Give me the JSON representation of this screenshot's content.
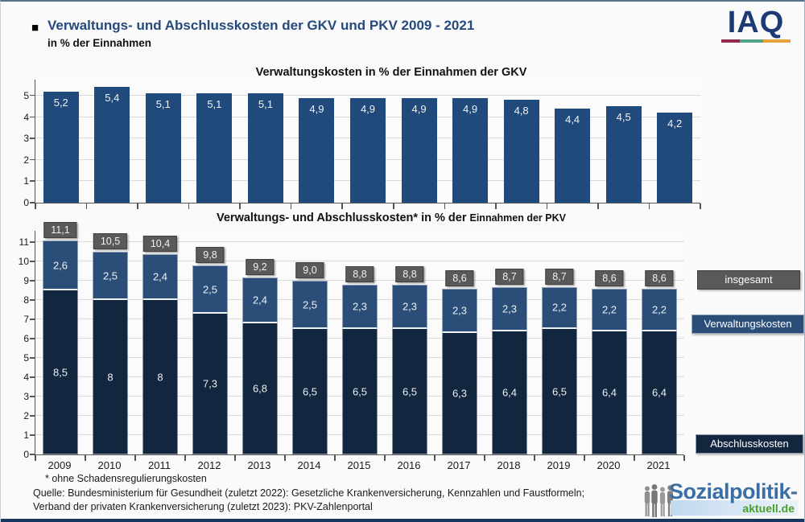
{
  "header": {
    "bullet": "■",
    "title": "Verwaltungs- und Abschlusskosten der GKV und PKV 2009 - 2021",
    "subtitle": "in % der Einnahmen"
  },
  "iaq_logo": {
    "text": "IAQ",
    "underline_colors": [
      "#8E2B49",
      "#4FA487",
      "#E8A23B"
    ]
  },
  "chart_data": [
    {
      "type": "bar",
      "title": "Verwaltungskosten in % der Einnahmen der GKV",
      "categories": [
        "2009",
        "2010",
        "2011",
        "2012",
        "2013",
        "2014",
        "2015",
        "2016",
        "2017",
        "2018",
        "2019",
        "2020",
        "2021"
      ],
      "values": [
        5.2,
        5.4,
        5.1,
        5.1,
        5.1,
        4.9,
        4.9,
        4.9,
        4.9,
        4.8,
        4.4,
        4.5,
        4.2
      ],
      "labels": [
        "5,2",
        "5,4",
        "5,1",
        "5,1",
        "5,1",
        "4,9",
        "4,9",
        "4,9",
        "4,9",
        "4,8",
        "4,4",
        "4,5",
        "4,2"
      ],
      "bar_color": "#20497C",
      "ylim": [
        0,
        5.75
      ],
      "yticks": [
        0,
        1,
        2,
        3,
        4,
        5
      ],
      "grid": true,
      "x_labels_visible": false
    },
    {
      "type": "stacked-bar",
      "title": "Verwaltungs- und Abschlusskosten* in % der Einnahmen der PKV",
      "title_parts": {
        "main": "Verwaltungs- und Abschlusskosten* in % der ",
        "small": "Einnahmen der PKV"
      },
      "categories": [
        "2009",
        "2010",
        "2011",
        "2012",
        "2013",
        "2014",
        "2015",
        "2016",
        "2017",
        "2018",
        "2019",
        "2020",
        "2021"
      ],
      "series": [
        {
          "name": "Abschlusskosten",
          "color": "#13263F",
          "values": [
            8.5,
            8,
            8,
            7.3,
            6.8,
            6.5,
            6.5,
            6.5,
            6.3,
            6.4,
            6.5,
            6.4,
            6.4
          ],
          "labels": [
            "8,5",
            "8",
            "8",
            "7,3",
            "6,8",
            "6,5",
            "6,5",
            "6,5",
            "6,3",
            "6,4",
            "6,5",
            "6,4",
            "6,4"
          ]
        },
        {
          "name": "Verwaltungskosten",
          "color": "#2B4E78",
          "values": [
            2.6,
            2.5,
            2.4,
            2.5,
            2.4,
            2.5,
            2.3,
            2.3,
            2.3,
            2.3,
            2.2,
            2.2,
            2.2
          ],
          "labels": [
            "2,6",
            "2,5",
            "2,4",
            "2,5",
            "2,4",
            "2,5",
            "2,3",
            "2,3",
            "2,3",
            "2,3",
            "2,2",
            "2,2",
            "2,2"
          ]
        }
      ],
      "totals": {
        "name": "insgesamt",
        "color": "#595959",
        "values": [
          11.1,
          10.5,
          10.4,
          9.8,
          9.2,
          9.0,
          8.8,
          8.8,
          8.6,
          8.7,
          8.7,
          8.6,
          8.6
        ],
        "labels": [
          "11,1",
          "10,5",
          "10,4",
          "9,8",
          "9,2",
          "9,0",
          "8,8",
          "8,8",
          "8,6",
          "8,7",
          "8,7",
          "8,6",
          "8,6"
        ]
      },
      "legend": [
        {
          "label": "insgesamt",
          "color": "#595959"
        },
        {
          "label": "Verwaltungskosten",
          "color": "#2B4E78"
        },
        {
          "label": "Abschlusskosten",
          "color": "#13263F"
        }
      ],
      "ylim": [
        0,
        11.6
      ],
      "yticks": [
        0,
        1,
        2,
        3,
        4,
        5,
        6,
        7,
        8,
        9,
        10,
        11
      ],
      "grid": true,
      "x_labels_visible": true
    }
  ],
  "footnotes": {
    "asterisk": "* ohne Schadensregulierungskosten",
    "source_line1": "Quelle: Bundesministerium für Gesundheit (zuletzt 2022): Gesetzliche Krankenversicherung, Kennzahlen und Faustformeln;",
    "source_line2": "Verband der privaten Krankenversicherung (zuletzt 2023): PKV-Zahlenportal"
  },
  "brand": {
    "title": "Sozialpolitik-",
    "subtitle": "aktuell.de",
    "title_color": "#3A6EA5",
    "subtitle_color": "#4B9E2A"
  }
}
